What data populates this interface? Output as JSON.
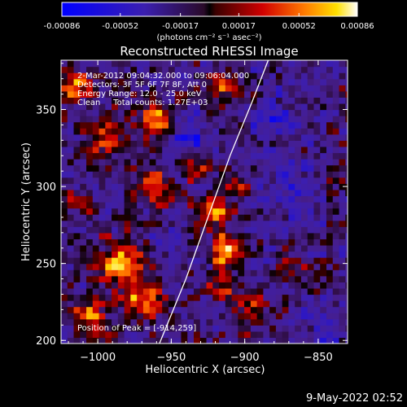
{
  "colorbar": {
    "tick_labels": [
      "-0.00086",
      "-0.00052",
      "-0.00017",
      "0.00017",
      "0.00052",
      "0.00086"
    ],
    "min": -0.00086,
    "max": 0.00086,
    "units": "(photons cm⁻² s⁻¹ asec⁻²)"
  },
  "chart_data": {
    "type": "heatmap",
    "title": "Reconstructed RHESSI Image",
    "xlabel": "Heliocentric X (arcsec)",
    "ylabel": "Heliocentric Y (arcsec)",
    "xlim": [
      -1025,
      -830
    ],
    "ylim": [
      198,
      382
    ],
    "xticks": [
      -1000,
      -950,
      -900,
      -850
    ],
    "yticks": [
      200,
      250,
      300,
      350
    ],
    "xtick_labels": [
      "−1000",
      "−950",
      "−900",
      "−850"
    ],
    "ytick_labels": [
      "200",
      "250",
      "300",
      "350"
    ],
    "info_lines": [
      "2-Mar-2012 09:04:32.000 to 09:06:04.000",
      "Detectors: 3F 5F 6F 7F 8F, Att 0",
      "Energy Range: 12.0 - 25.0 keV",
      "Clean     Total counts: 1.27E+03"
    ],
    "peak_label": "Position of Peak = [-914,259]",
    "peak": [
      -914,
      259
    ],
    "limb_points": [
      [
        -958,
        198
      ],
      [
        -940,
        240
      ],
      [
        -925,
        280
      ],
      [
        -910,
        320
      ],
      [
        -895,
        355
      ],
      [
        -884,
        382
      ]
    ],
    "hot_spots": [
      {
        "x": -914,
        "y": 259,
        "amp": 1.0,
        "r": 9
      },
      {
        "x": -920,
        "y": 285,
        "amp": 0.65,
        "r": 10
      },
      {
        "x": -905,
        "y": 300,
        "amp": 0.5,
        "r": 8
      },
      {
        "x": -985,
        "y": 250,
        "amp": 0.75,
        "r": 14
      },
      {
        "x": -970,
        "y": 225,
        "amp": 0.7,
        "r": 12
      },
      {
        "x": -1005,
        "y": 215,
        "amp": 0.6,
        "r": 12
      },
      {
        "x": -960,
        "y": 300,
        "amp": 0.6,
        "r": 11
      },
      {
        "x": -995,
        "y": 330,
        "amp": 0.55,
        "r": 12
      },
      {
        "x": -960,
        "y": 345,
        "amp": 0.6,
        "r": 12
      },
      {
        "x": -935,
        "y": 315,
        "amp": 0.55,
        "r": 9
      },
      {
        "x": -1015,
        "y": 365,
        "amp": 0.55,
        "r": 10
      },
      {
        "x": -915,
        "y": 368,
        "amp": 0.5,
        "r": 9
      },
      {
        "x": -895,
        "y": 220,
        "amp": 0.5,
        "r": 10
      },
      {
        "x": -915,
        "y": 235,
        "amp": 0.55,
        "r": 9
      },
      {
        "x": -870,
        "y": 250,
        "amp": 0.35,
        "r": 9
      },
      {
        "x": -1010,
        "y": 290,
        "amp": 0.4,
        "r": 9
      }
    ],
    "cold_spots": [
      {
        "x": -935,
        "y": 330,
        "amp": 0.6,
        "r": 12
      },
      {
        "x": -870,
        "y": 300,
        "amp": 0.45,
        "r": 18
      },
      {
        "x": -880,
        "y": 345,
        "amp": 0.4,
        "r": 14
      },
      {
        "x": -845,
        "y": 210,
        "amp": 0.35,
        "r": 12
      },
      {
        "x": -950,
        "y": 270,
        "amp": 0.3,
        "r": 10
      }
    ]
  },
  "timestamp": "9-May-2022 02:52"
}
